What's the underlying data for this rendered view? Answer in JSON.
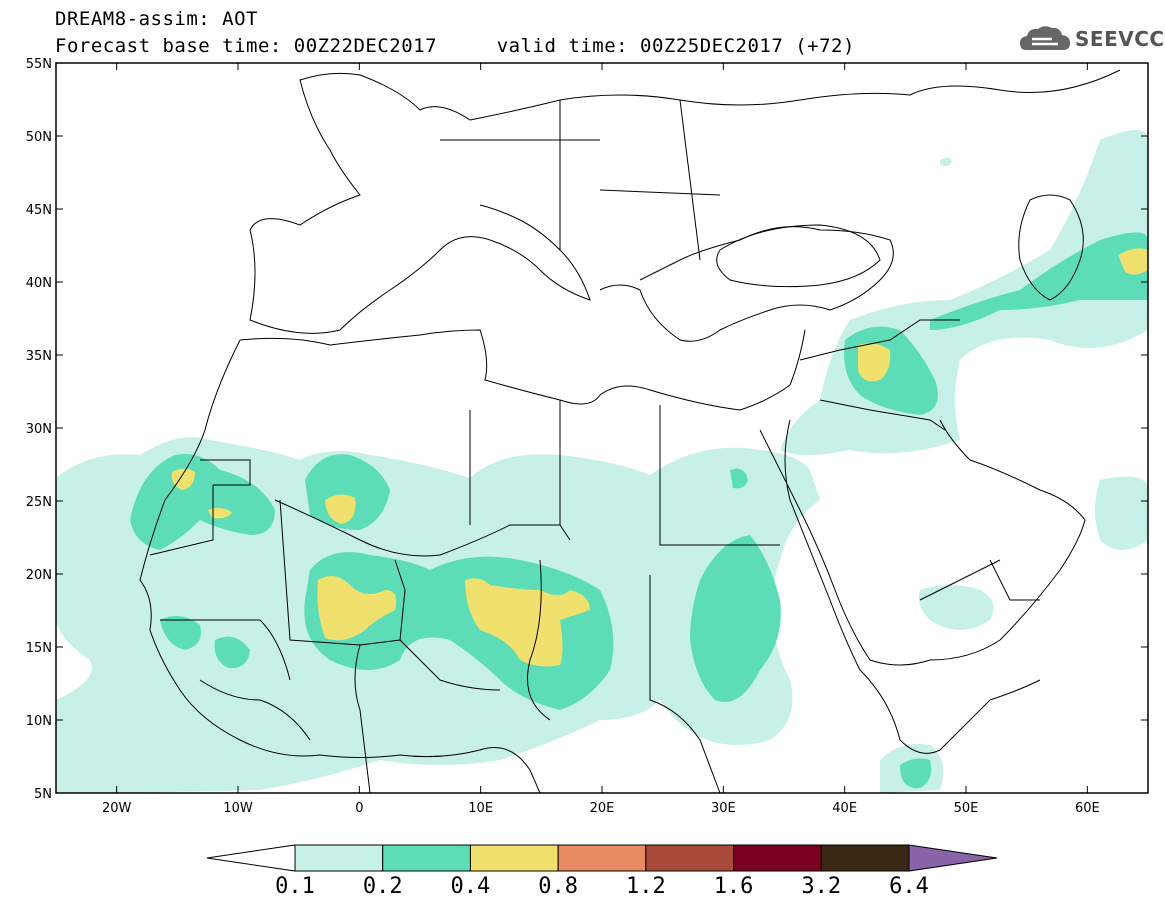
{
  "header": {
    "title": "DREAM8-assim: AOT",
    "subtitle": "Forecast base time: 00Z22DEC2017     valid time: 00Z25DEC2017 (+72)"
  },
  "logo": {
    "text": "SEEVCCC",
    "icon": "cloud-icon"
  },
  "map": {
    "lat_range": [
      5,
      55
    ],
    "lon_range": [
      -25,
      65
    ],
    "lat_ticks": [
      "5N",
      "10N",
      "15N",
      "20N",
      "25N",
      "30N",
      "35N",
      "40N",
      "45N",
      "50N",
      "55N"
    ],
    "lon_ticks": [
      "20W",
      "10W",
      "0",
      "10E",
      "20E",
      "30E",
      "40E",
      "50E",
      "60E"
    ],
    "land_outline_color": "#000000"
  },
  "colorbar": {
    "labels": [
      "0.1",
      "0.2",
      "0.4",
      "0.8",
      "1.2",
      "1.6",
      "3.2",
      "6.4"
    ],
    "colors": [
      "#ffffff",
      "#c7f0e8",
      "#5cddb8",
      "#f0e06e",
      "#e88a62",
      "#aa4a3a",
      "#7a0020",
      "#3a2814",
      "#8a64a8"
    ]
  }
}
